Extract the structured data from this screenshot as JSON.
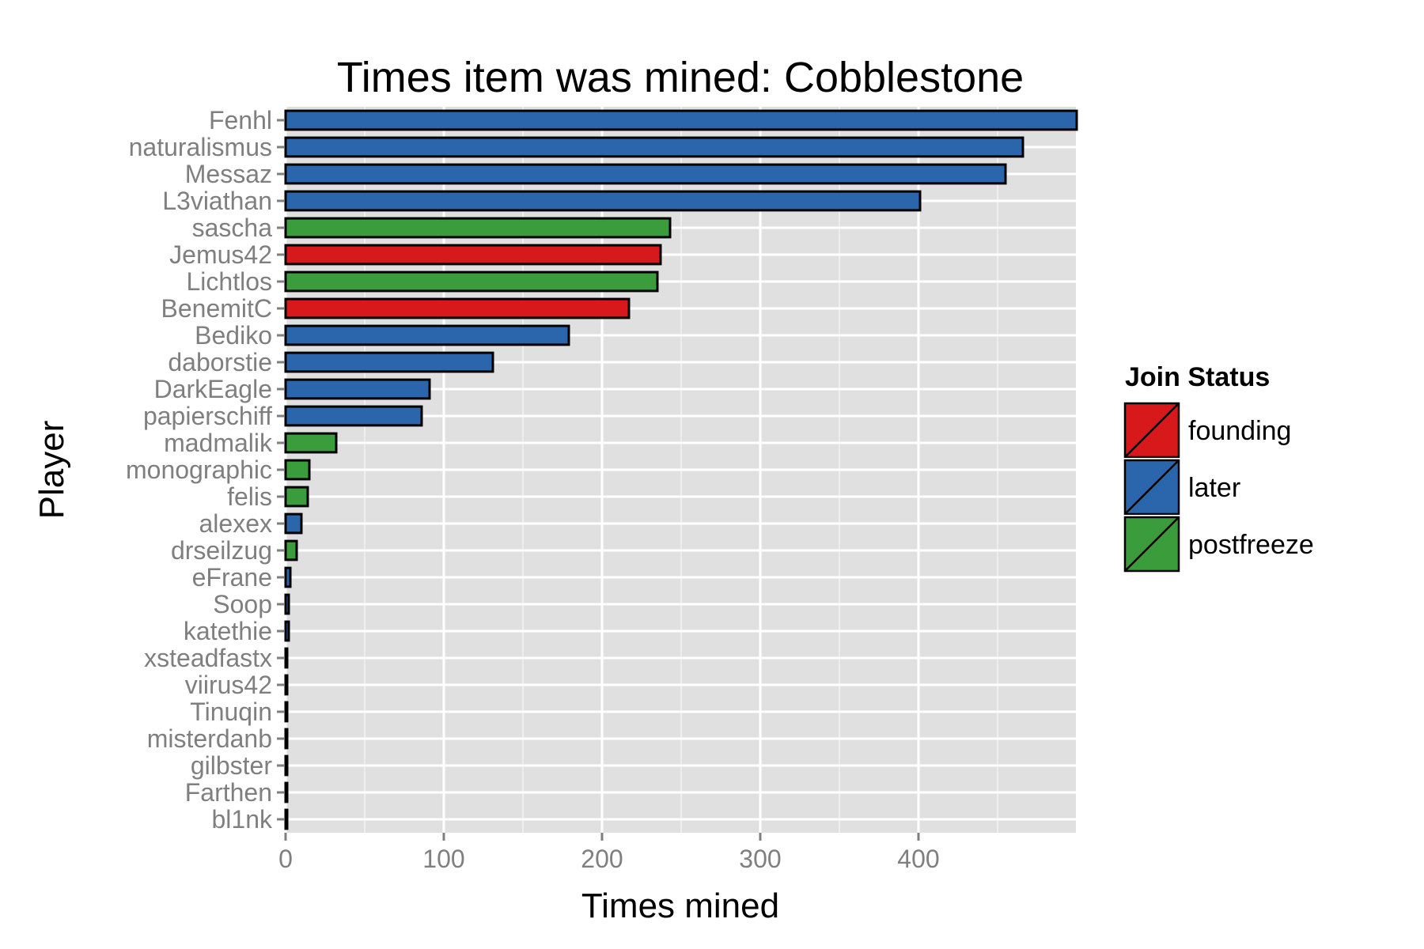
{
  "chart_data": {
    "type": "bar",
    "orientation": "horizontal",
    "title": "Times item was mined: Cobblestone",
    "xlabel": "Times mined",
    "ylabel": "Player",
    "xlim": [
      0,
      500
    ],
    "xticks": [
      0,
      100,
      200,
      300,
      400
    ],
    "grid": true,
    "legend": {
      "title": "Join Status",
      "position": "right",
      "entries": [
        {
          "name": "founding",
          "color": "#d7191c"
        },
        {
          "name": "later",
          "color": "#2b65ab"
        },
        {
          "name": "postfreeze",
          "color": "#3a9c3a"
        }
      ]
    },
    "categories": [
      "Fenhl",
      "naturalismus",
      "Messaz",
      "L3viathan",
      "sascha",
      "Jemus42",
      "Lichtlos",
      "BenemitC",
      "Bediko",
      "daborstie",
      "DarkEagle",
      "papierschiff",
      "madmalik",
      "monographic",
      "felis",
      "alexex",
      "drseilzug",
      "eFrane",
      "Soop",
      "katethie",
      "xsteadfastx",
      "viirus42",
      "Tinuqin",
      "misterdanb",
      "gilbster",
      "Farthen",
      "bl1nk"
    ],
    "values": [
      500,
      466,
      455,
      401,
      243,
      237,
      235,
      217,
      179,
      131,
      91,
      86,
      32,
      15,
      14,
      10,
      7,
      3,
      2,
      2,
      1,
      1,
      1,
      1,
      1,
      1,
      1
    ],
    "groups": [
      "later",
      "later",
      "later",
      "later",
      "postfreeze",
      "founding",
      "postfreeze",
      "founding",
      "later",
      "later",
      "later",
      "later",
      "postfreeze",
      "postfreeze",
      "postfreeze",
      "later",
      "postfreeze",
      "later",
      "later",
      "later",
      "later",
      "later",
      "later",
      "later",
      "later",
      "later",
      "later"
    ]
  }
}
